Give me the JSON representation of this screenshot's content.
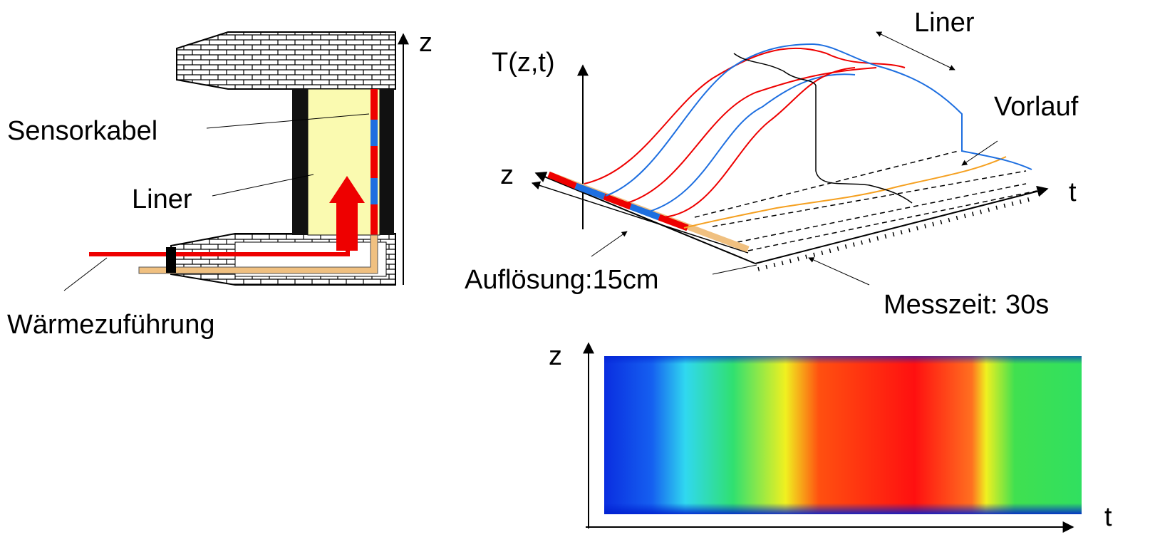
{
  "left_diagram": {
    "axis_label": "z",
    "labels": [
      "Sensorkabel",
      "Liner",
      "Wärmezuführung"
    ]
  },
  "waterfall_plot": {
    "y_axis_label": "T(z,t)",
    "z_axis_label": "z",
    "t_axis_label": "t",
    "annotations": [
      "Liner",
      "Vorlauf",
      "Auflösung:15cm",
      "Messzeit: 30s"
    ]
  },
  "heatmap": {
    "z_axis_label": "z",
    "t_axis_label": "t"
  }
}
